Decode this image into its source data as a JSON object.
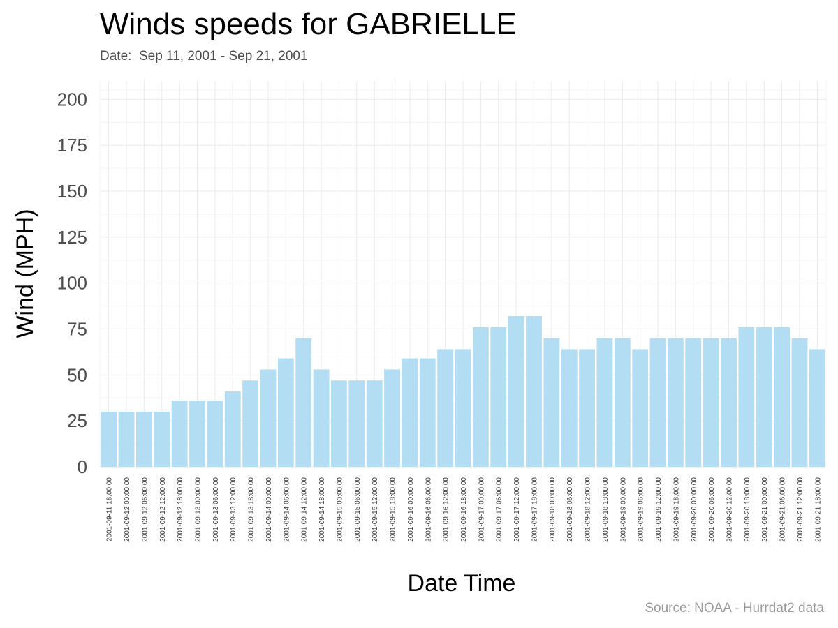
{
  "chart_data": {
    "type": "bar",
    "title": "Winds speeds for GABRIELLE",
    "subtitle": "Date:  Sep 11, 2001 - Sep 21, 2001",
    "xlabel": "Date Time",
    "ylabel": "Wind (MPH)",
    "caption": "Source: NOAA - Hurrdat2 data",
    "ylim": [
      0,
      210
    ],
    "yticks": [
      0,
      25,
      50,
      75,
      100,
      125,
      150,
      175,
      200
    ],
    "grid": true,
    "bar_color": "#b3ddf2",
    "categories": [
      "2001-09-11 18:00:00",
      "2001-09-12 00:00:00",
      "2001-09-12 06:00:00",
      "2001-09-12 12:00:00",
      "2001-09-12 18:00:00",
      "2001-09-13 00:00:00",
      "2001-09-13 06:00:00",
      "2001-09-13 12:00:00",
      "2001-09-13 18:00:00",
      "2001-09-14 00:00:00",
      "2001-09-14 06:00:00",
      "2001-09-14 12:00:00",
      "2001-09-14 18:00:00",
      "2001-09-15 00:00:00",
      "2001-09-15 06:00:00",
      "2001-09-15 12:00:00",
      "2001-09-15 18:00:00",
      "2001-09-16 00:00:00",
      "2001-09-16 06:00:00",
      "2001-09-16 12:00:00",
      "2001-09-16 18:00:00",
      "2001-09-17 00:00:00",
      "2001-09-17 06:00:00",
      "2001-09-17 12:00:00",
      "2001-09-17 18:00:00",
      "2001-09-18 00:00:00",
      "2001-09-18 06:00:00",
      "2001-09-18 12:00:00",
      "2001-09-18 18:00:00",
      "2001-09-19 00:00:00",
      "2001-09-19 06:00:00",
      "2001-09-19 12:00:00",
      "2001-09-19 18:00:00",
      "2001-09-20 00:00:00",
      "2001-09-20 06:00:00",
      "2001-09-20 12:00:00",
      "2001-09-20 18:00:00",
      "2001-09-21 00:00:00",
      "2001-09-21 06:00:00",
      "2001-09-21 12:00:00",
      "2001-09-21 18:00:00"
    ],
    "values": [
      30,
      30,
      30,
      30,
      36,
      36,
      36,
      41,
      47,
      53,
      59,
      70,
      53,
      47,
      47,
      47,
      53,
      59,
      59,
      64,
      64,
      76,
      76,
      82,
      82,
      70,
      64,
      64,
      70,
      70,
      64,
      70,
      70,
      70,
      70,
      70,
      76,
      76,
      76,
      70,
      64
    ]
  }
}
